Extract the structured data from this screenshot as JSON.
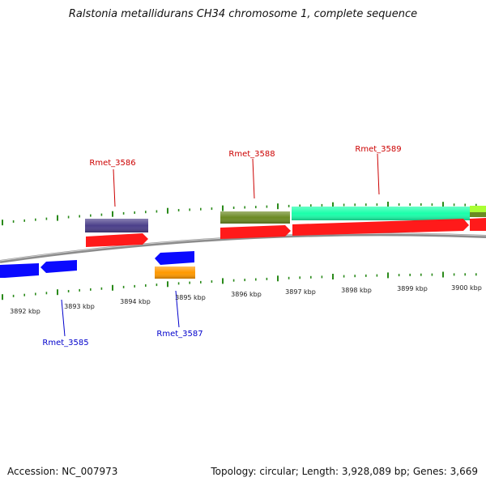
{
  "title": "Ralstonia metallidurans CH34 chromosome 1, complete sequence",
  "footer": {
    "accession": "Accession: NC_007973",
    "summary": "Topology: circular; Length: 3,928,089 bp; Genes: 3,669"
  },
  "colors": {
    "backbone": "#888888",
    "tick": "#2a8a1a",
    "forward_label": "#cc0000",
    "reverse_label": "#0000cc"
  },
  "kbp_labels": [
    "3892 kbp",
    "3893 kbp",
    "3894 kbp",
    "3895 kbp",
    "3896 kbp",
    "3897 kbp",
    "3898 kbp",
    "3899 kbp",
    "3900 kbp"
  ],
  "gene_labels": {
    "forward": [
      "Rmet_3586",
      "Rmet_3588",
      "Rmet_3589"
    ],
    "reverse": [
      "Rmet_3585",
      "Rmet_3587"
    ]
  },
  "features": [
    {
      "name": "cog-bar-3586",
      "color": "#4b3f8a"
    },
    {
      "name": "gene-arrow-3586",
      "color": "#ff1a1a"
    },
    {
      "name": "cog-bar-3588",
      "color": "#6b8a23"
    },
    {
      "name": "gene-arrow-3588",
      "color": "#ff1a1a"
    },
    {
      "name": "cog-bar-3589",
      "color": "#1affaa"
    },
    {
      "name": "gene-arrow-3589",
      "color": "#ff1a1a"
    },
    {
      "name": "cog-bar-3590",
      "color": "#aaff33"
    },
    {
      "name": "gene-arrow-3590",
      "color": "#ff1a1a"
    },
    {
      "name": "gene-arrow-3584",
      "color": "#0a0aff"
    },
    {
      "name": "gene-arrow-3585",
      "color": "#0a0aff"
    },
    {
      "name": "gene-arrow-3587",
      "color": "#0a0aff"
    },
    {
      "name": "cog-bar-3587",
      "color": "#ff9900"
    }
  ]
}
